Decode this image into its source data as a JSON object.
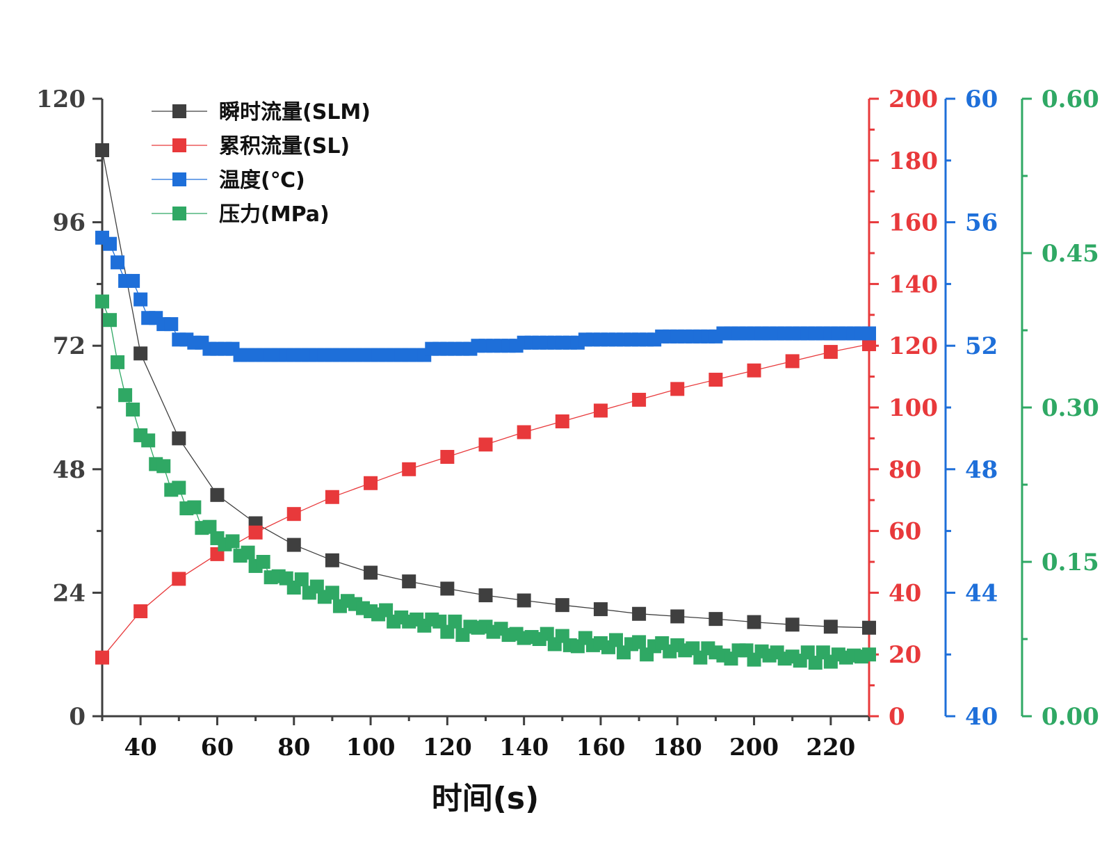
{
  "chart_data": {
    "type": "line",
    "xlabel": "时间(s)",
    "xlim": [
      30,
      230
    ],
    "x_ticks": [
      "40",
      "60",
      "80",
      "100",
      "120",
      "140",
      "160",
      "180",
      "200",
      "220"
    ],
    "axes": [
      {
        "id": "flow",
        "color": "#3f3f3f",
        "ylim": [
          0,
          120
        ],
        "ticks": [
          "0",
          "24",
          "48",
          "72",
          "96",
          "120"
        ]
      },
      {
        "id": "cum",
        "color": "#e8393b",
        "ylim": [
          0,
          200
        ],
        "ticks": [
          "0",
          "20",
          "40",
          "60",
          "80",
          "100",
          "120",
          "140",
          "160",
          "180",
          "200"
        ]
      },
      {
        "id": "temp",
        "color": "#1e6fd9",
        "ylim": [
          40,
          60
        ],
        "ticks": [
          "40",
          "44",
          "48",
          "52",
          "56",
          "60"
        ]
      },
      {
        "id": "press",
        "color": "#2fa864",
        "ylim": [
          0,
          0.6
        ],
        "ticks": [
          "0.00",
          "0.15",
          "0.30",
          "0.45",
          "0.60"
        ]
      }
    ],
    "series": [
      {
        "name": "瞬时流量(SLM)",
        "axis": "flow",
        "color": "#3f3f3f",
        "x": [
          30,
          40,
          50,
          60,
          70,
          80,
          90,
          100,
          110,
          120,
          130,
          140,
          150,
          160,
          170,
          180,
          190,
          200,
          210,
          220,
          230
        ],
        "y": [
          110,
          70.5,
          54,
          43,
          37.5,
          33.3,
          30.3,
          27.9,
          26.2,
          24.8,
          23.5,
          22.5,
          21.6,
          20.8,
          19.9,
          19.4,
          18.9,
          18.3,
          17.8,
          17.4,
          17.2
        ]
      },
      {
        "name": "累积流量(SL)",
        "axis": "cum",
        "color": "#e8393b",
        "x": [
          30,
          40,
          50,
          60,
          70,
          80,
          90,
          100,
          110,
          120,
          130,
          140,
          150,
          160,
          170,
          180,
          190,
          200,
          210,
          220,
          230
        ],
        "y": [
          19,
          34,
          44.5,
          52.5,
          59.5,
          65.5,
          71,
          75.5,
          80,
          84,
          88,
          92,
          95.5,
          99,
          102.5,
          106,
          109,
          112,
          115,
          118,
          120.5
        ]
      },
      {
        "name": "温度(℃)",
        "axis": "temp",
        "color": "#1e6fd9",
        "x": [
          30,
          32,
          34,
          36,
          38,
          40,
          42,
          44,
          46,
          48,
          50,
          52,
          54,
          56,
          58,
          60,
          62,
          64,
          66,
          68,
          70,
          72,
          74,
          76,
          78,
          80,
          82,
          84,
          86,
          88,
          90,
          92,
          94,
          96,
          98,
          100,
          102,
          104,
          106,
          108,
          110,
          112,
          114,
          116,
          118,
          120,
          122,
          124,
          126,
          128,
          130,
          132,
          134,
          136,
          138,
          140,
          142,
          144,
          146,
          148,
          150,
          152,
          154,
          156,
          158,
          160,
          162,
          164,
          166,
          168,
          170,
          172,
          174,
          176,
          178,
          180,
          182,
          184,
          186,
          188,
          190,
          192,
          194,
          196,
          198,
          200,
          202,
          204,
          206,
          208,
          210,
          212,
          214,
          216,
          218,
          220,
          222,
          224,
          226,
          228,
          230
        ],
        "y": [
          55.5,
          55.3,
          54.7,
          54.1,
          54.1,
          53.5,
          52.9,
          52.9,
          52.7,
          52.7,
          52.2,
          52.2,
          52.1,
          52.1,
          51.9,
          51.9,
          51.9,
          51.9,
          51.7,
          51.7,
          51.7,
          51.7,
          51.7,
          51.7,
          51.7,
          51.7,
          51.7,
          51.7,
          51.7,
          51.7,
          51.7,
          51.7,
          51.7,
          51.7,
          51.7,
          51.7,
          51.7,
          51.7,
          51.7,
          51.7,
          51.7,
          51.7,
          51.7,
          51.9,
          51.9,
          51.9,
          51.9,
          51.9,
          51.9,
          52.0,
          52.0,
          52.0,
          52.0,
          52.0,
          52.0,
          52.1,
          52.1,
          52.1,
          52.1,
          52.1,
          52.1,
          52.1,
          52.1,
          52.2,
          52.2,
          52.2,
          52.2,
          52.2,
          52.2,
          52.2,
          52.2,
          52.2,
          52.2,
          52.3,
          52.3,
          52.3,
          52.3,
          52.3,
          52.3,
          52.3,
          52.3,
          52.4,
          52.4,
          52.4,
          52.4,
          52.4,
          52.4,
          52.4,
          52.4,
          52.4,
          52.4,
          52.4,
          52.4,
          52.4,
          52.4,
          52.4,
          52.4,
          52.4,
          52.4,
          52.4,
          52.4
        ]
      },
      {
        "name": "压力(MPa)",
        "axis": "press",
        "color": "#2fa864",
        "x": [
          30,
          32,
          34,
          36,
          38,
          40,
          42,
          44,
          46,
          48,
          50,
          52,
          54,
          56,
          58,
          60,
          62,
          64,
          66,
          68,
          70,
          72,
          74,
          76,
          78,
          80,
          82,
          84,
          86,
          88,
          90,
          92,
          94,
          96,
          98,
          100,
          102,
          104,
          106,
          108,
          110,
          112,
          114,
          116,
          118,
          120,
          122,
          124,
          126,
          128,
          130,
          132,
          134,
          136,
          138,
          140,
          142,
          144,
          146,
          148,
          150,
          152,
          154,
          156,
          158,
          160,
          162,
          164,
          166,
          168,
          170,
          172,
          174,
          176,
          178,
          180,
          182,
          184,
          186,
          188,
          190,
          192,
          194,
          196,
          198,
          200,
          202,
          204,
          206,
          208,
          210,
          212,
          214,
          216,
          218,
          220,
          222,
          224,
          226,
          228,
          230
        ],
        "y": [
          0.403,
          0.385,
          0.344,
          0.312,
          0.298,
          0.273,
          0.268,
          0.245,
          0.243,
          0.22,
          0.222,
          0.202,
          0.203,
          0.183,
          0.184,
          0.173,
          0.167,
          0.17,
          0.156,
          0.159,
          0.146,
          0.15,
          0.135,
          0.136,
          0.134,
          0.125,
          0.133,
          0.12,
          0.126,
          0.116,
          0.12,
          0.107,
          0.112,
          0.109,
          0.105,
          0.102,
          0.099,
          0.103,
          0.092,
          0.096,
          0.092,
          0.094,
          0.088,
          0.094,
          0.092,
          0.082,
          0.092,
          0.079,
          0.087,
          0.086,
          0.087,
          0.082,
          0.085,
          0.079,
          0.08,
          0.076,
          0.077,
          0.075,
          0.08,
          0.07,
          0.078,
          0.069,
          0.068,
          0.076,
          0.069,
          0.071,
          0.067,
          0.074,
          0.062,
          0.07,
          0.072,
          0.06,
          0.068,
          0.071,
          0.063,
          0.069,
          0.064,
          0.066,
          0.057,
          0.066,
          0.062,
          0.059,
          0.056,
          0.064,
          0.064,
          0.055,
          0.063,
          0.059,
          0.062,
          0.056,
          0.058,
          0.054,
          0.062,
          0.052,
          0.062,
          0.053,
          0.06,
          0.057,
          0.059,
          0.058,
          0.06
        ]
      }
    ]
  }
}
